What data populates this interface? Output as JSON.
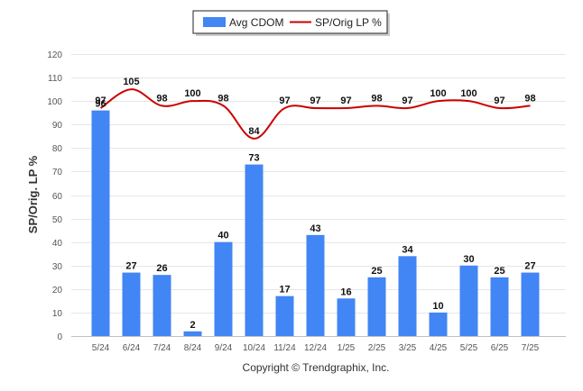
{
  "chart_data": {
    "type": "bar+line",
    "categories": [
      "5/24",
      "6/24",
      "7/24",
      "8/24",
      "9/24",
      "10/24",
      "11/24",
      "12/24",
      "1/25",
      "2/25",
      "3/25",
      "4/25",
      "5/25",
      "6/25",
      "7/25"
    ],
    "series": [
      {
        "name": "Avg CDOM",
        "type": "bar",
        "color": "#4285f4",
        "values": [
          96,
          27,
          26,
          2,
          40,
          73,
          17,
          43,
          16,
          25,
          34,
          10,
          30,
          25,
          27
        ]
      },
      {
        "name": "SP/Orig LP %",
        "type": "line",
        "color": "#cc0000",
        "values": [
          97,
          105,
          98,
          100,
          98,
          84,
          97,
          97,
          97,
          98,
          97,
          100,
          100,
          97,
          98
        ]
      }
    ],
    "ylabel": "SP/Orig. LP %",
    "ylim": [
      0,
      120
    ],
    "yticks": [
      0,
      10,
      20,
      30,
      40,
      50,
      60,
      70,
      80,
      90,
      100,
      110,
      120
    ],
    "grid": true,
    "legend": "top-center",
    "credit": "Copyright © Trendgraphix, Inc."
  }
}
